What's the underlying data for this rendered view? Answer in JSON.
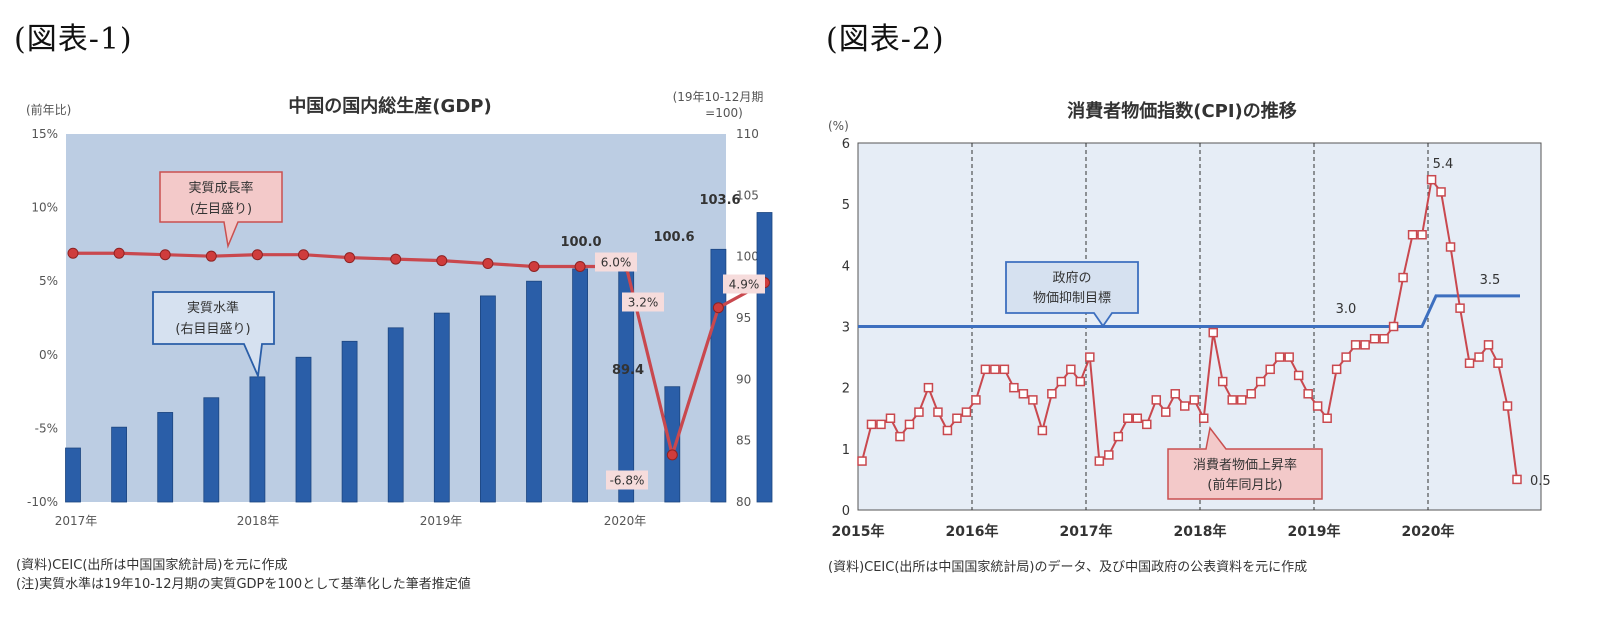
{
  "figure1": {
    "label": "(図表-1)",
    "source_note": "(資料)CEIC(出所は中国国家統計局)を元に作成",
    "footnote": "(注)実質水準は19年10-12月期の実質GDPを100として基準化した筆者推定値"
  },
  "figure2": {
    "label": "(図表-2)",
    "source_note": "(資料)CEIC(出所は中国国家統計局)のデータ、及び中国政府の公表資料を元に作成"
  },
  "chart_data": [
    {
      "type": "bar",
      "title": "中国の国内総生産(GDP)",
      "ylabel": "(前年比)",
      "y2label_line1": "(19年10-12月期",
      "y2label_line2": "=100)",
      "x_tick_labels": [
        "2017年",
        "2018年",
        "2019年",
        "2020年"
      ],
      "y_left_ticks": [
        "15%",
        "10%",
        "5%",
        "0%",
        "-5%",
        "-10%"
      ],
      "y_left_range": [
        -10,
        15
      ],
      "y_right_ticks": [
        "110",
        "105",
        "100",
        "95",
        "90",
        "85",
        "80"
      ],
      "y_right_range": [
        80,
        110
      ],
      "categories": [
        "2016Q4",
        "2017Q1",
        "2017Q2",
        "2017Q3",
        "2017Q4",
        "2018Q1",
        "2018Q2",
        "2018Q3",
        "2018Q4",
        "2019Q1",
        "2019Q2",
        "2019Q3",
        "2019Q4",
        "2020Q1",
        "2020Q2",
        "2020Q3"
      ],
      "series": [
        {
          "name": "実質水準",
          "name_line1": "実質水準",
          "name_line2": "(右目目盛り)",
          "type": "bar",
          "axis": "right",
          "values": [
            84.4,
            86.1,
            87.3,
            88.5,
            90.2,
            91.8,
            93.1,
            94.2,
            95.4,
            96.8,
            98.0,
            99.0,
            100.0,
            89.4,
            100.6,
            103.6
          ]
        },
        {
          "name": "実質成長率",
          "name_line1": "実質成長率",
          "name_line2": "(左目盛り)",
          "type": "line",
          "axis": "left",
          "values": [
            6.9,
            6.9,
            6.8,
            6.7,
            6.8,
            6.8,
            6.6,
            6.5,
            6.4,
            6.2,
            6.0,
            6.0,
            6.0,
            -6.8,
            3.2,
            4.9
          ]
        }
      ],
      "bar_data_labels": [
        "100.0",
        "89.4",
        "100.6",
        "103.6"
      ],
      "line_data_labels": [
        "6.0%",
        "-6.8%",
        "3.2%",
        "4.9%"
      ],
      "colors": {
        "bar": "#2a5ea8",
        "line": "#c9484e",
        "plot_bg": "#bccde3"
      }
    },
    {
      "type": "line",
      "title": "消費者物価指数(CPI)の推移",
      "ylabel": "(%)",
      "y_ticks": [
        "6",
        "5",
        "4",
        "3",
        "2",
        "1",
        "0"
      ],
      "y_range": [
        0,
        6
      ],
      "x_tick_labels": [
        "2015年",
        "2016年",
        "2017年",
        "2018年",
        "2019年",
        "2020年"
      ],
      "series": [
        {
          "name": "消費者物価上昇率",
          "name_line1": "消費者物価上昇率",
          "name_line2": "(前年同月比)",
          "values": [
            0.8,
            1.4,
            1.4,
            1.5,
            1.2,
            1.4,
            1.6,
            2.0,
            1.6,
            1.3,
            1.5,
            1.6,
            1.8,
            2.3,
            2.3,
            2.3,
            2.0,
            1.9,
            1.8,
            1.3,
            1.9,
            2.1,
            2.3,
            2.1,
            2.5,
            0.8,
            0.9,
            1.2,
            1.5,
            1.5,
            1.4,
            1.8,
            1.6,
            1.9,
            1.7,
            1.8,
            1.5,
            2.9,
            2.1,
            1.8,
            1.8,
            1.9,
            2.1,
            2.3,
            2.5,
            2.5,
            2.2,
            1.9,
            1.7,
            1.5,
            2.3,
            2.5,
            2.7,
            2.7,
            2.8,
            2.8,
            3.0,
            3.8,
            4.5,
            4.5,
            5.4,
            5.2,
            4.3,
            3.3,
            2.4,
            2.5,
            2.7,
            2.4,
            1.7,
            0.5
          ]
        },
        {
          "name": "政府の物価抑制目標",
          "name_line1": "政府の",
          "name_line2": "物価抑制目標",
          "steps": [
            {
              "from": "2015年",
              "to": "2019年",
              "value": 3.0
            },
            {
              "from": "2020年",
              "to": "2020年",
              "value": 3.5
            }
          ]
        }
      ],
      "data_labels": [
        "5.4",
        "0.5",
        "3.0",
        "3.5"
      ],
      "colors": {
        "line": "#c9484e",
        "target": "#3d6fbf",
        "plot_bg": "#e6edf6"
      }
    }
  ]
}
